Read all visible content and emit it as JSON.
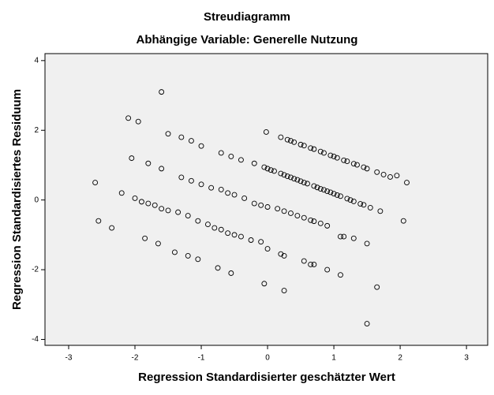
{
  "chart_data": {
    "type": "scatter",
    "title": "Streudiagramm",
    "subtitle": "Abhängige Variable: Generelle Nutzung",
    "x_label": "Regression Standardisierter geschätzter Wert",
    "y_label": "Regression Standardisiertes Residuum",
    "xlim": [
      -3.357,
      3.32
    ],
    "ylim": [
      -4.17,
      4.2
    ],
    "xticks": [
      -3,
      -2,
      -1,
      0,
      1,
      2,
      3
    ],
    "yticks": [
      -4,
      -2,
      0,
      2,
      4
    ],
    "color": "#000000",
    "x": [
      0.2,
      0.3,
      0.35,
      0.4,
      0.5,
      0.55,
      0.65,
      0.7,
      0.8,
      0.85,
      0.95,
      1.0,
      1.05,
      1.15,
      1.2,
      1.3,
      1.35,
      1.45,
      1.5,
      1.65,
      1.75,
      1.85,
      -0.05,
      0,
      0.05,
      0.1,
      0.2,
      0.25,
      0.3,
      0.35,
      0.4,
      0.45,
      0.5,
      0.55,
      0.6,
      0.7,
      0.75,
      0.8,
      0.85,
      0.9,
      0.95,
      1.0,
      1.05,
      1.1,
      1.2,
      1.25,
      1.3,
      1.4,
      1.45,
      1.55,
      1.7,
      0.15,
      0.25,
      0.35,
      0.45,
      0.55,
      0.65,
      0.7,
      0.8,
      0.9,
      0.2,
      0.25,
      0.55,
      0.65,
      0.7,
      1.1,
      1.15,
      1.3,
      1.5,
      -1.5,
      -1.3,
      -1.15,
      -1.0,
      -0.7,
      -0.55,
      -0.4,
      -0.2,
      -1.3,
      -1.15,
      -1.0,
      -0.85,
      -0.7,
      -0.6,
      -0.5,
      -0.35,
      -0.2,
      -0.1,
      0,
      -2.2,
      -2.0,
      -1.9,
      -1.8,
      -1.7,
      -1.6,
      -1.5,
      -1.35,
      -1.2,
      -1.05,
      -0.9,
      -0.8,
      -0.7,
      -0.6,
      -0.5,
      -0.4,
      -0.25,
      -0.1,
      0,
      -1.85,
      -1.65,
      -1.4,
      -1.2,
      -1.05,
      -1.6,
      -2.1,
      -1.95,
      -2.6,
      -2.55,
      -2.35,
      -2.05,
      -1.8,
      -1.6,
      -0.75,
      -0.55,
      -0.05,
      0.25,
      0.9,
      1.1,
      1.65,
      1.5,
      2.05,
      2.1,
      -0.02,
      1.95
    ],
    "y": [
      1.8,
      1.73,
      1.7,
      1.66,
      1.59,
      1.56,
      1.49,
      1.46,
      1.39,
      1.35,
      1.28,
      1.25,
      1.21,
      1.14,
      1.11,
      1.04,
      1.01,
      0.94,
      0.9,
      0.8,
      0.73,
      0.66,
      0.94,
      0.9,
      0.86,
      0.83,
      0.76,
      0.72,
      0.68,
      0.65,
      0.61,
      0.58,
      0.54,
      0.5,
      0.47,
      0.4,
      0.36,
      0.32,
      0.29,
      0.25,
      0.22,
      0.18,
      0.14,
      0.11,
      0.04,
      0,
      -0.04,
      -0.11,
      -0.14,
      -0.22,
      -0.32,
      -0.25,
      -0.32,
      -0.38,
      -0.45,
      -0.51,
      -0.58,
      -0.61,
      -0.67,
      -0.74,
      -1.55,
      -1.6,
      -1.75,
      -1.85,
      -1.85,
      -1.05,
      -1.05,
      -1.1,
      -1.25,
      1.9,
      1.8,
      1.7,
      1.55,
      1.35,
      1.25,
      1.15,
      1.05,
      0.65,
      0.55,
      0.45,
      0.35,
      0.3,
      0.2,
      0.15,
      0.05,
      -0.1,
      -0.15,
      -0.2,
      0.2,
      0.05,
      -0.05,
      -0.1,
      -0.15,
      -0.25,
      -0.3,
      -0.35,
      -0.45,
      -0.6,
      -0.7,
      -0.8,
      -0.85,
      -0.95,
      -1.0,
      -1.05,
      -1.15,
      -1.2,
      -1.4,
      -1.1,
      -1.25,
      -1.5,
      -1.6,
      -1.7,
      3.1,
      2.35,
      2.25,
      0.5,
      -0.6,
      -0.8,
      1.2,
      1.05,
      0.9,
      -1.95,
      -2.1,
      -2.4,
      -2.6,
      -2.0,
      -2.15,
      -2.5,
      -3.55,
      -0.6,
      0.5,
      1.95,
      0.7
    ]
  }
}
